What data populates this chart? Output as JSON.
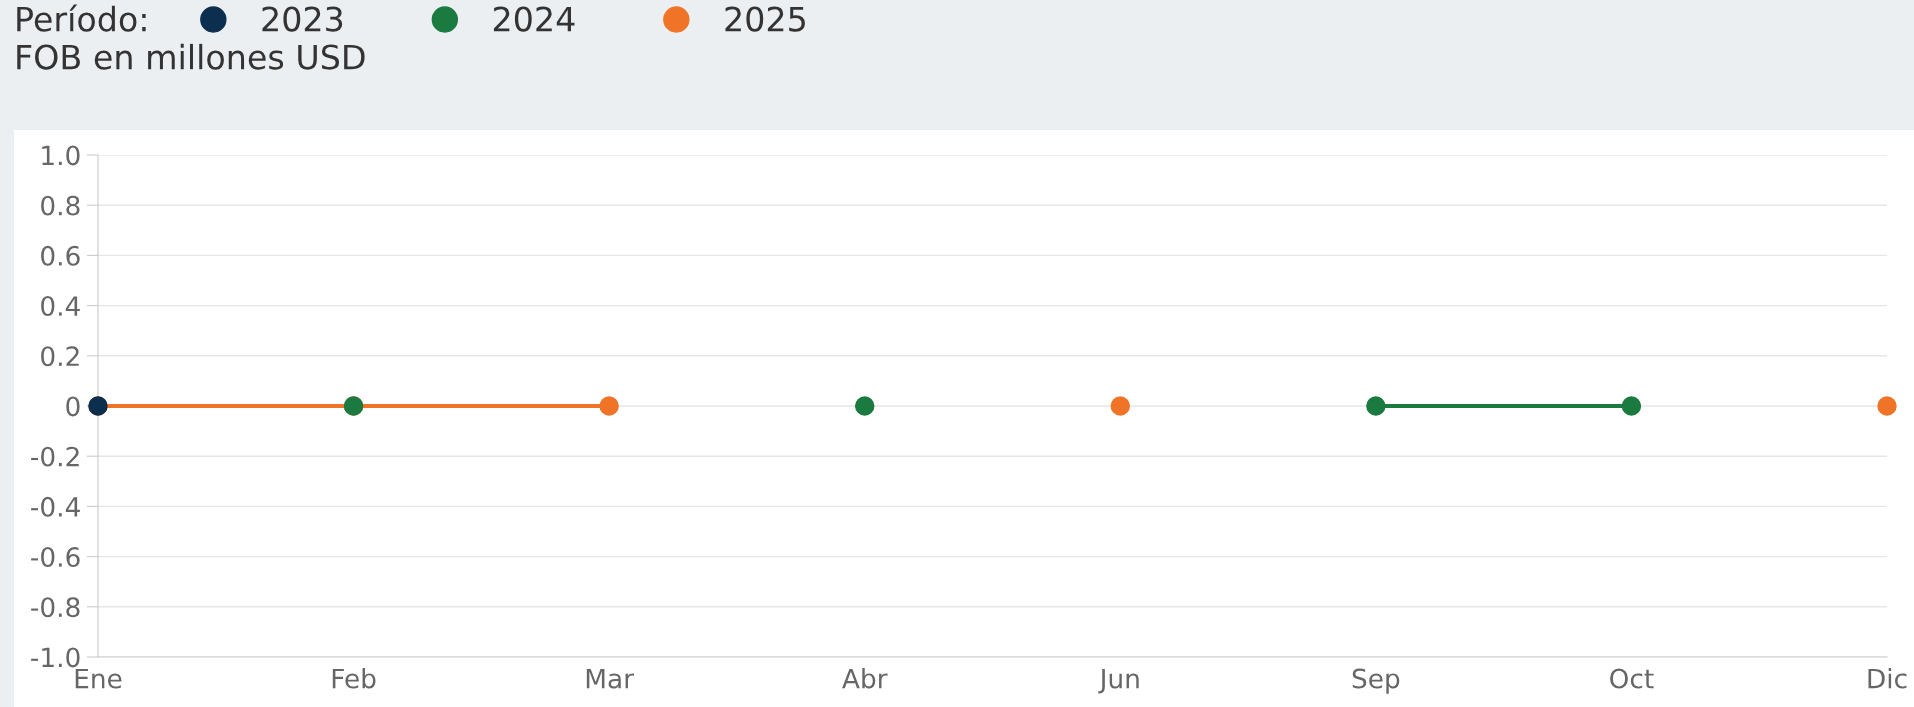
{
  "chart_data": {
    "type": "line",
    "legend_title": "Período:",
    "ylabel": "FOB en millones USD",
    "categories": [
      "Ene",
      "Feb",
      "Mar",
      "Abr",
      "Jun",
      "Sep",
      "Oct",
      "Dic"
    ],
    "series": [
      {
        "name": "2023",
        "color": "#0d2f4f",
        "values": [
          0,
          null,
          null,
          null,
          null,
          null,
          null,
          null
        ]
      },
      {
        "name": "2024",
        "color": "#1a7a40",
        "values": [
          null,
          0,
          null,
          0,
          null,
          0,
          0,
          null
        ]
      },
      {
        "name": "2025",
        "color": "#f07427",
        "values": [
          0,
          0,
          0,
          null,
          0,
          null,
          null,
          0
        ]
      }
    ],
    "ylim": [
      -1.0,
      1.0
    ],
    "yticks": [
      {
        "value": -1.0,
        "label": "-1.0"
      },
      {
        "value": -0.8,
        "label": "-0.8"
      },
      {
        "value": -0.6,
        "label": "-0.6"
      },
      {
        "value": -0.4,
        "label": "-0.4"
      },
      {
        "value": -0.2,
        "label": "-0.2"
      },
      0,
      {
        "value": 0.2,
        "label": "0.2"
      },
      {
        "value": 0.4,
        "label": "0.4"
      },
      {
        "value": 0.6,
        "label": "0.6"
      },
      {
        "value": 0.8,
        "label": "0.8"
      },
      {
        "value": 1.0,
        "label": "1.0"
      }
    ],
    "grid": "y",
    "legend": "top",
    "marker": "circle",
    "line_style": "solid"
  }
}
